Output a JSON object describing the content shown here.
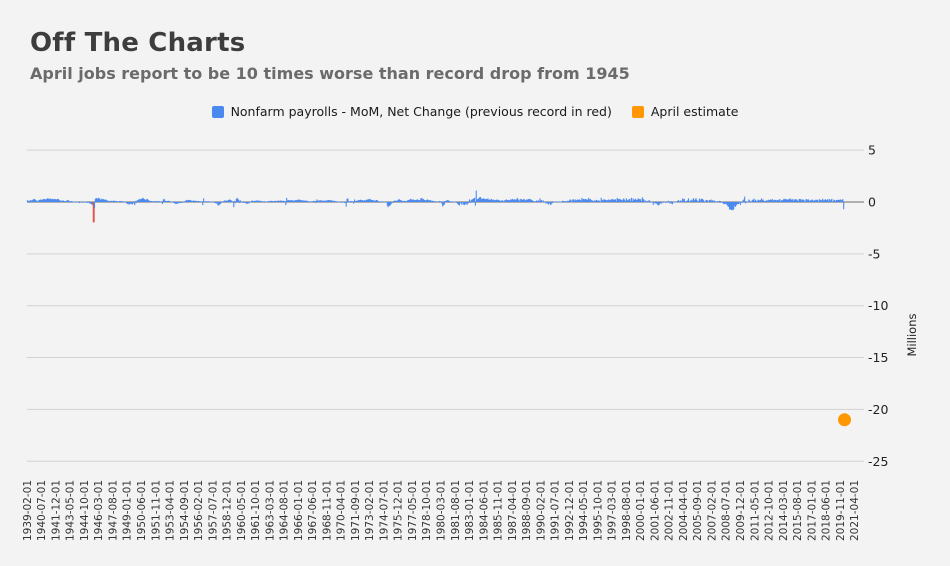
{
  "header": {
    "title": "Off The Charts",
    "subtitle": "April jobs report to be 10 times worse than record drop from 1945"
  },
  "legend": [
    {
      "label": "Nonfarm payrolls - MoM, Net Change (previous record in red)",
      "color": "#4b89f0",
      "shape": "square"
    },
    {
      "label": "April estimate",
      "color": "#ff9800",
      "shape": "square"
    }
  ],
  "chart_data": {
    "type": "bar",
    "title": "Off The Charts",
    "subtitle": "April jobs report to be 10 times worse than record drop from 1945",
    "unit_note": "bar values stored in thousands of jobs; y axis shown in millions",
    "start_month": "1939-02-01",
    "total_month_slots": 987,
    "x_ticks_every_months": 17,
    "grid": true,
    "legend_position": "top",
    "y_axis": {
      "title": "Millions",
      "ticks": [
        5,
        0,
        -5,
        -10,
        -15,
        -20,
        -25
      ],
      "min": -25.5,
      "max": 5.5
    },
    "x_tick_labels": [
      "1939-02-01",
      "1940-07-01",
      "1941-12-01",
      "1943-05-01",
      "1944-10-01",
      "1946-03-01",
      "1947-08-01",
      "1949-01-01",
      "1950-06-01",
      "1951-11-01",
      "1953-04-01",
      "1954-09-01",
      "1956-02-01",
      "1957-07-01",
      "1958-12-01",
      "1960-05-01",
      "1961-10-01",
      "1963-03-01",
      "1964-08-01",
      "1966-01-01",
      "1967-06-01",
      "1968-11-01",
      "1970-04-01",
      "1971-09-01",
      "1973-02-01",
      "1974-07-01",
      "1975-12-01",
      "1977-05-01",
      "1978-10-01",
      "1980-03-01",
      "1981-08-01",
      "1983-01-01",
      "1984-06-01",
      "1985-11-01",
      "1987-04-01",
      "1988-09-01",
      "1990-02-01",
      "1991-07-01",
      "1992-12-01",
      "1994-05-01",
      "1995-10-01",
      "1997-03-01",
      "1998-08-01",
      "2000-01-01",
      "2001-06-01",
      "2002-11-01",
      "2004-04-01",
      "2005-09-01",
      "2007-02-01",
      "2008-07-01",
      "2009-12-01",
      "2011-05-01",
      "2012-10-01",
      "2014-03-01",
      "2015-08-01",
      "2017-01-01",
      "2018-06-01",
      "2019-11-01",
      "2021-04-01"
    ],
    "series": [
      {
        "name": "Nonfarm payrolls - MoM, Net Change (previous record in red)",
        "type": "bar",
        "color": "#4b89f0",
        "record": {
          "month": "1945-09-01",
          "index": 79,
          "value_thousands": -1960,
          "color": "#e5544d"
        },
        "values_thousands": [
          170,
          120,
          -80,
          150,
          200,
          130,
          180,
          260,
          300,
          250,
          190,
          120,
          60,
          150,
          180,
          220,
          250,
          200,
          230,
          280,
          300,
          260,
          240,
          300,
          350,
          320,
          280,
          350,
          300,
          250,
          300,
          280,
          250,
          300,
          250,
          250,
          300,
          280,
          200,
          150,
          100,
          150,
          100,
          150,
          100,
          50,
          100,
          150,
          200,
          150,
          100,
          50,
          100,
          80,
          50,
          -50,
          -30,
          20,
          50,
          -30,
          50,
          -20,
          -100,
          -50,
          30,
          -80,
          -20,
          50,
          -60,
          30,
          -20,
          -100,
          -50,
          -80,
          -120,
          -150,
          -200,
          -250,
          -300,
          -1960,
          -600,
          300,
          400,
          300,
          350,
          400,
          350,
          200,
          300,
          250,
          300,
          250,
          200,
          250,
          200,
          150,
          100,
          120,
          80,
          100,
          120,
          80,
          100,
          150,
          100,
          80,
          100,
          50,
          80,
          50,
          100,
          80,
          100,
          50,
          80,
          50,
          30,
          -50,
          -100,
          -200,
          -150,
          -250,
          -200,
          -150,
          -180,
          -250,
          -100,
          -150,
          -300,
          100,
          -100,
          200,
          150,
          250,
          300,
          250,
          300,
          350,
          400,
          300,
          250,
          200,
          250,
          300,
          200,
          150,
          100,
          80,
          100,
          50,
          80,
          100,
          50,
          80,
          100,
          50,
          80,
          100,
          -50,
          30,
          80,
          -200,
          250,
          300,
          150,
          100,
          80,
          100,
          120,
          100,
          80,
          50,
          30,
          -20,
          -80,
          -100,
          -150,
          -200,
          -180,
          -150,
          -100,
          -120,
          -80,
          -100,
          -50,
          -80,
          -30,
          50,
          100,
          150,
          200,
          150,
          200,
          180,
          200,
          150,
          120,
          100,
          150,
          120,
          100,
          120,
          100,
          80,
          100,
          80,
          50,
          80,
          -50,
          -300,
          350,
          50,
          80,
          50,
          80,
          50,
          80,
          30,
          -20,
          30,
          20,
          -30,
          -50,
          -80,
          -100,
          -150,
          -120,
          -300,
          -350,
          -250,
          -200,
          -100,
          -50,
          50,
          100,
          150,
          100,
          150,
          120,
          150,
          200,
          250,
          200,
          150,
          100,
          -50,
          -500,
          100,
          -100,
          300,
          400,
          300,
          200,
          -100,
          150,
          50,
          -50,
          -80,
          -100,
          -50,
          -100,
          -150,
          -200,
          -100,
          -150,
          -50,
          50,
          100,
          150,
          80,
          100,
          120,
          100,
          150,
          120,
          150,
          120,
          100,
          120,
          80,
          50,
          80,
          50,
          80,
          50,
          30,
          50,
          80,
          100,
          80,
          100,
          120,
          80,
          100,
          80,
          100,
          120,
          80,
          100,
          150,
          120,
          100,
          150,
          120,
          100,
          120,
          100,
          80,
          -300,
          400,
          150,
          200,
          150,
          180,
          150,
          200,
          150,
          120,
          150,
          180,
          150,
          200,
          180,
          250,
          200,
          220,
          180,
          150,
          180,
          120,
          150,
          100,
          150,
          120,
          100,
          80,
          50,
          30,
          80,
          50,
          80,
          100,
          120,
          80,
          -100,
          250,
          150,
          120,
          150,
          180,
          150,
          120,
          150,
          100,
          120,
          150,
          120,
          150,
          180,
          200,
          180,
          150,
          180,
          150,
          120,
          100,
          120,
          80,
          50,
          80,
          50,
          -30,
          50,
          30,
          -50,
          -80,
          -50,
          -30,
          -80,
          -100,
          -450,
          300,
          350,
          100,
          50,
          80,
          100,
          50,
          80,
          -150,
          250,
          80,
          100,
          150,
          120,
          200,
          180,
          220,
          180,
          200,
          150,
          120,
          180,
          150,
          200,
          250,
          200,
          300,
          280,
          250,
          200,
          180,
          200,
          150,
          100,
          150,
          200,
          180,
          100,
          80,
          50,
          30,
          50,
          80,
          30,
          50,
          -30,
          -20,
          -50,
          -350,
          -500,
          -360,
          -380,
          -270,
          -150,
          -50,
          -100,
          100,
          150,
          120,
          100,
          150,
          200,
          300,
          200,
          180,
          150,
          100,
          80,
          120,
          100,
          80,
          100,
          150,
          180,
          200,
          250,
          300,
          250,
          200,
          250,
          200,
          180,
          200,
          220,
          250,
          200,
          150,
          200,
          350,
          400,
          250,
          300,
          200,
          180,
          150,
          200,
          250,
          180,
          150,
          200,
          150,
          100,
          120,
          100,
          80,
          50,
          80,
          50,
          30,
          50,
          100,
          80,
          30,
          -150,
          -430,
          -320,
          -260,
          100,
          120,
          150,
          200,
          150,
          100,
          50,
          80,
          50,
          30,
          50,
          30,
          -30,
          -50,
          -100,
          -200,
          -280,
          -330,
          -50,
          -150,
          -280,
          -50,
          -250,
          -300,
          -200,
          -150,
          -280,
          -150,
          -100,
          250,
          -80,
          180,
          250,
          280,
          350,
          400,
          -350,
          1100,
          250,
          300,
          350,
          450,
          480,
          280,
          350,
          300,
          350,
          300,
          250,
          300,
          280,
          350,
          200,
          250,
          200,
          300,
          200,
          250,
          150,
          200,
          180,
          200,
          250,
          200,
          180,
          150,
          120,
          100,
          180,
          120,
          -50,
          200,
          150,
          250,
          200,
          180,
          200,
          150,
          250,
          220,
          300,
          250,
          200,
          280,
          200,
          250,
          400,
          200,
          250,
          100,
          300,
          250,
          200,
          250,
          300,
          200,
          150,
          250,
          200,
          300,
          250,
          300,
          250,
          200,
          150,
          100,
          80,
          50,
          80,
          150,
          100,
          150,
          100,
          350,
          150,
          200,
          50,
          150,
          50,
          -50,
          -150,
          -80,
          -150,
          -250,
          -100,
          -200,
          -300,
          -150,
          -100,
          -50,
          30,
          -50,
          20,
          30,
          10,
          -50,
          30,
          50,
          -30,
          50,
          120,
          100,
          80,
          50,
          100,
          50,
          120,
          100,
          150,
          250,
          200,
          -50,
          250,
          250,
          150,
          250,
          150,
          200,
          250,
          200,
          250,
          200,
          150,
          400,
          250,
          300,
          250,
          300,
          250,
          250,
          200,
          400,
          250,
          300,
          200,
          150,
          150,
          -50,
          150,
          100,
          200,
          200,
          100,
          150,
          120,
          -50,
          400,
          200,
          150,
          250,
          250,
          200,
          200,
          150,
          200,
          250,
          150,
          200,
          250,
          300,
          250,
          200,
          250,
          250,
          100,
          400,
          300,
          250,
          300,
          250,
          200,
          150,
          250,
          350,
          200,
          100,
          350,
          200,
          150,
          250,
          300,
          100,
          400,
          100,
          350,
          200,
          250,
          300,
          200,
          200,
          350,
          250,
          300,
          250,
          100,
          450,
          300,
          220,
          -50,
          150,
          0,
          100,
          -10,
          200,
          100,
          -30,
          50,
          -30,
          -280,
          -40,
          -130,
          -130,
          -160,
          -240,
          -330,
          -290,
          -150,
          -130,
          -150,
          -20,
          -80,
          -10,
          50,
          -90,
          -20,
          -60,
          120,
          10,
          -160,
          90,
          -160,
          -210,
          -50,
          -10,
          -20,
          30,
          -40,
          100,
          200,
          20,
          120,
          160,
          50,
          340,
          250,
          310,
          80,
          50,
          120,
          160,
          350,
          60,
          130,
          140,
          240,
          140,
          360,
          170,
          250,
          370,
          190,
          80,
          80,
          330,
          160,
          280,
          320,
          280,
          180,
          20,
          80,
          200,
          180,
          150,
          30,
          200,
          170,
          240,
          90,
          190,
          80,
          140,
          70,
          -30,
          -20,
          90,
          80,
          110,
          90,
          10,
          -90,
          -80,
          -210,
          -190,
          -170,
          -210,
          -280,
          -430,
          -480,
          -730,
          -700,
          -780,
          -740,
          -800,
          -690,
          -360,
          -470,
          -330,
          -220,
          -190,
          -200,
          -10,
          -280,
          20,
          -70,
          160,
          250,
          520,
          -130,
          -70,
          -30,
          -50,
          240,
          140,
          70,
          40,
          190,
          220,
          320,
          110,
          230,
          70,
          110,
          230,
          180,
          140,
          200,
          340,
          230,
          240,
          100,
          110,
          90,
          160,
          150,
          160,
          230,
          200,
          240,
          200,
          280,
          140,
          200,
          220,
          180,
          150,
          200,
          160,
          230,
          280,
          70,
          170,
          180,
          230,
          330,
          230,
          290,
          250,
          210,
          270,
          240,
          350,
          260,
          220,
          270,
          120,
          250,
          270,
          230,
          250,
          150,
          120,
          300,
          280,
          270,
          170,
          240,
          230,
          150,
          40,
          250,
          290,
          180,
          250,
          120,
          160,
          150,
          230,
          220,
          80,
          180,
          150,
          230,
          190,
          210,
          20,
          270,
          220,
          170,
          170,
          320,
          160,
          180,
          270,
          210,
          180,
          280,
          110,
          280,
          150,
          230,
          310,
          10,
          150,
          220,
          80,
          180,
          190,
          210,
          210,
          190,
          260,
          180,
          210,
          270,
          -700
        ]
      },
      {
        "name": "April estimate",
        "type": "scatter",
        "color": "#ff9800",
        "points": [
          {
            "month": "2020-04-01",
            "index": 974,
            "value_millions": -21
          }
        ]
      }
    ]
  }
}
